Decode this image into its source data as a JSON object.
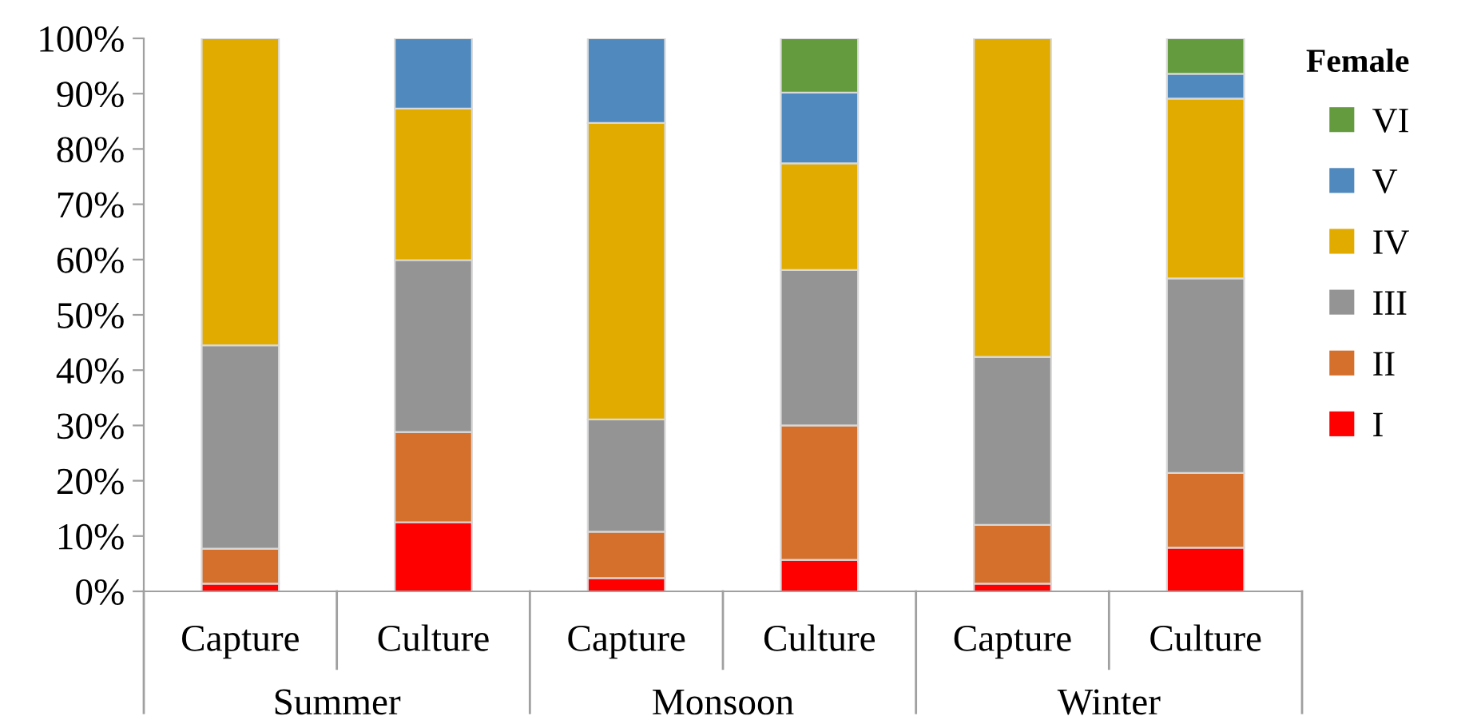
{
  "chart_data": {
    "type": "bar",
    "stacked": true,
    "categories": [
      "Capture",
      "Culture",
      "Capture",
      "Culture",
      "Capture",
      "Culture"
    ],
    "annotations": [
      "Summer",
      "Monsoon",
      "Winter"
    ],
    "legend_title": "Female",
    "legend": "right",
    "grid": false,
    "ylim": [
      0,
      100
    ],
    "yticks": [
      {
        "value": 0,
        "label": "0%"
      },
      {
        "value": 10,
        "label": "10%"
      },
      {
        "value": 20,
        "label": "20%"
      },
      {
        "value": 30,
        "label": "30%"
      },
      {
        "value": 40,
        "label": "40%"
      },
      {
        "value": 50,
        "label": "50%"
      },
      {
        "value": 60,
        "label": "60%"
      },
      {
        "value": 70,
        "label": "70%"
      },
      {
        "value": 80,
        "label": "80%"
      },
      {
        "value": 90,
        "label": "90%"
      },
      {
        "value": 100,
        "label": "100%"
      }
    ],
    "series": [
      {
        "name": "I",
        "color": "#ff0000",
        "values": [
          1.4,
          12.5,
          2.4,
          5.7,
          1.4,
          7.9
        ]
      },
      {
        "name": "II",
        "color": "#d46f2c",
        "values": [
          6.3,
          16.3,
          8.4,
          24.3,
          10.6,
          13.5
        ]
      },
      {
        "name": "III",
        "color": "#949494",
        "values": [
          36.8,
          31.1,
          20.3,
          28.1,
          30.4,
          35.2
        ]
      },
      {
        "name": "IV",
        "color": "#e1ab00",
        "values": [
          55.5,
          27.4,
          53.6,
          19.3,
          57.6,
          32.5
        ]
      },
      {
        "name": "V",
        "color": "#4f89bd",
        "values": [
          null,
          12.7,
          15.3,
          12.8,
          null,
          4.5
        ]
      },
      {
        "name": "VI",
        "color": "#659b3f",
        "values": [
          null,
          null,
          null,
          9.8,
          null,
          6.4
        ]
      }
    ]
  }
}
